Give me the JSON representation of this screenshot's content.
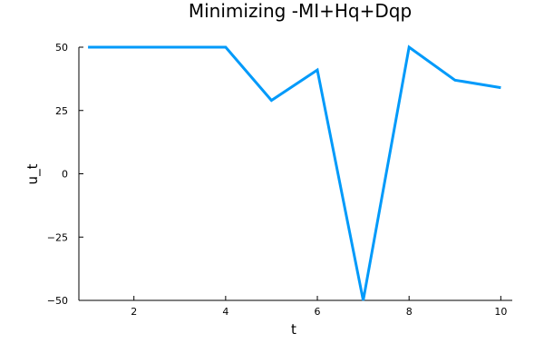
{
  "chart_data": {
    "type": "line",
    "title": "Minimizing -MI+Hq+Dqp",
    "xlabel": "t",
    "ylabel": "u_t",
    "xlim": [
      0.8,
      10.25
    ],
    "ylim": [
      -50,
      50
    ],
    "x_ticks": [
      2,
      4,
      6,
      8,
      10
    ],
    "x_tick_labels": [
      "2",
      "4",
      "6",
      "8",
      "10"
    ],
    "y_ticks": [
      50,
      25,
      0,
      -25,
      -50
    ],
    "y_tick_labels": [
      "50",
      "25",
      "0",
      "−25",
      "−50"
    ],
    "grid": false,
    "legend": "none",
    "x": [
      1,
      2,
      3,
      4,
      5,
      6,
      7,
      8,
      9,
      10
    ],
    "series": [
      {
        "color": "#009AFA",
        "values": [
          50,
          50,
          50,
          50,
          29,
          41,
          -50,
          50,
          37,
          34
        ]
      }
    ]
  }
}
